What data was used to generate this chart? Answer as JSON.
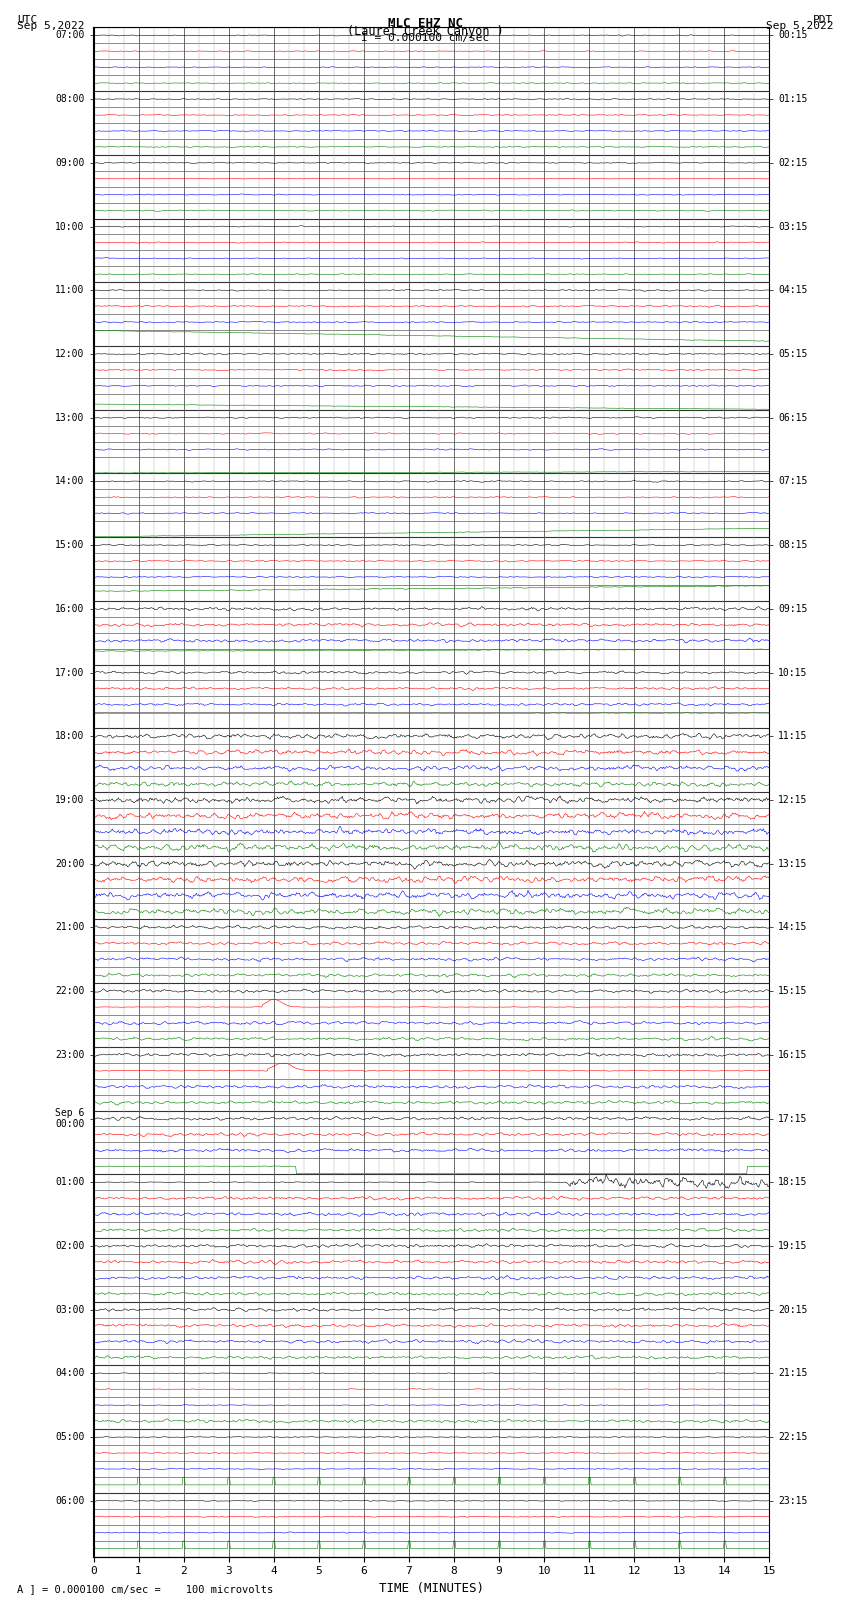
{
  "title_line1": "MLC EHZ NC",
  "title_line2": "(Laurel Creek Canyon )",
  "scale_label": "I = 0.000100 cm/sec",
  "xlabel": "TIME (MINUTES)",
  "bottom_note": "A ] = 0.000100 cm/sec =    100 microvolts",
  "left_times_labels": [
    "07:00",
    "08:00",
    "09:00",
    "10:00",
    "11:00",
    "12:00",
    "13:00",
    "14:00",
    "15:00",
    "16:00",
    "17:00",
    "18:00",
    "19:00",
    "20:00",
    "21:00",
    "22:00",
    "23:00",
    "Sep 6\n00:00",
    "01:00",
    "02:00",
    "03:00",
    "04:00",
    "05:00",
    "06:00"
  ],
  "right_times_labels": [
    "00:15",
    "01:15",
    "02:15",
    "03:15",
    "04:15",
    "05:15",
    "06:15",
    "07:15",
    "08:15",
    "09:15",
    "10:15",
    "11:15",
    "12:15",
    "13:15",
    "14:15",
    "15:15",
    "16:15",
    "17:15",
    "18:15",
    "19:15",
    "20:15",
    "21:15",
    "22:15",
    "23:15"
  ],
  "n_hours": 24,
  "traces_per_hour": 4,
  "n_minutes": 15,
  "bg_color": "#ffffff",
  "grid_major_color": "#000000",
  "grid_minor_color": "#888888",
  "color_cycle": [
    "black",
    "red",
    "blue",
    "green"
  ],
  "figsize": [
    8.5,
    16.13
  ]
}
